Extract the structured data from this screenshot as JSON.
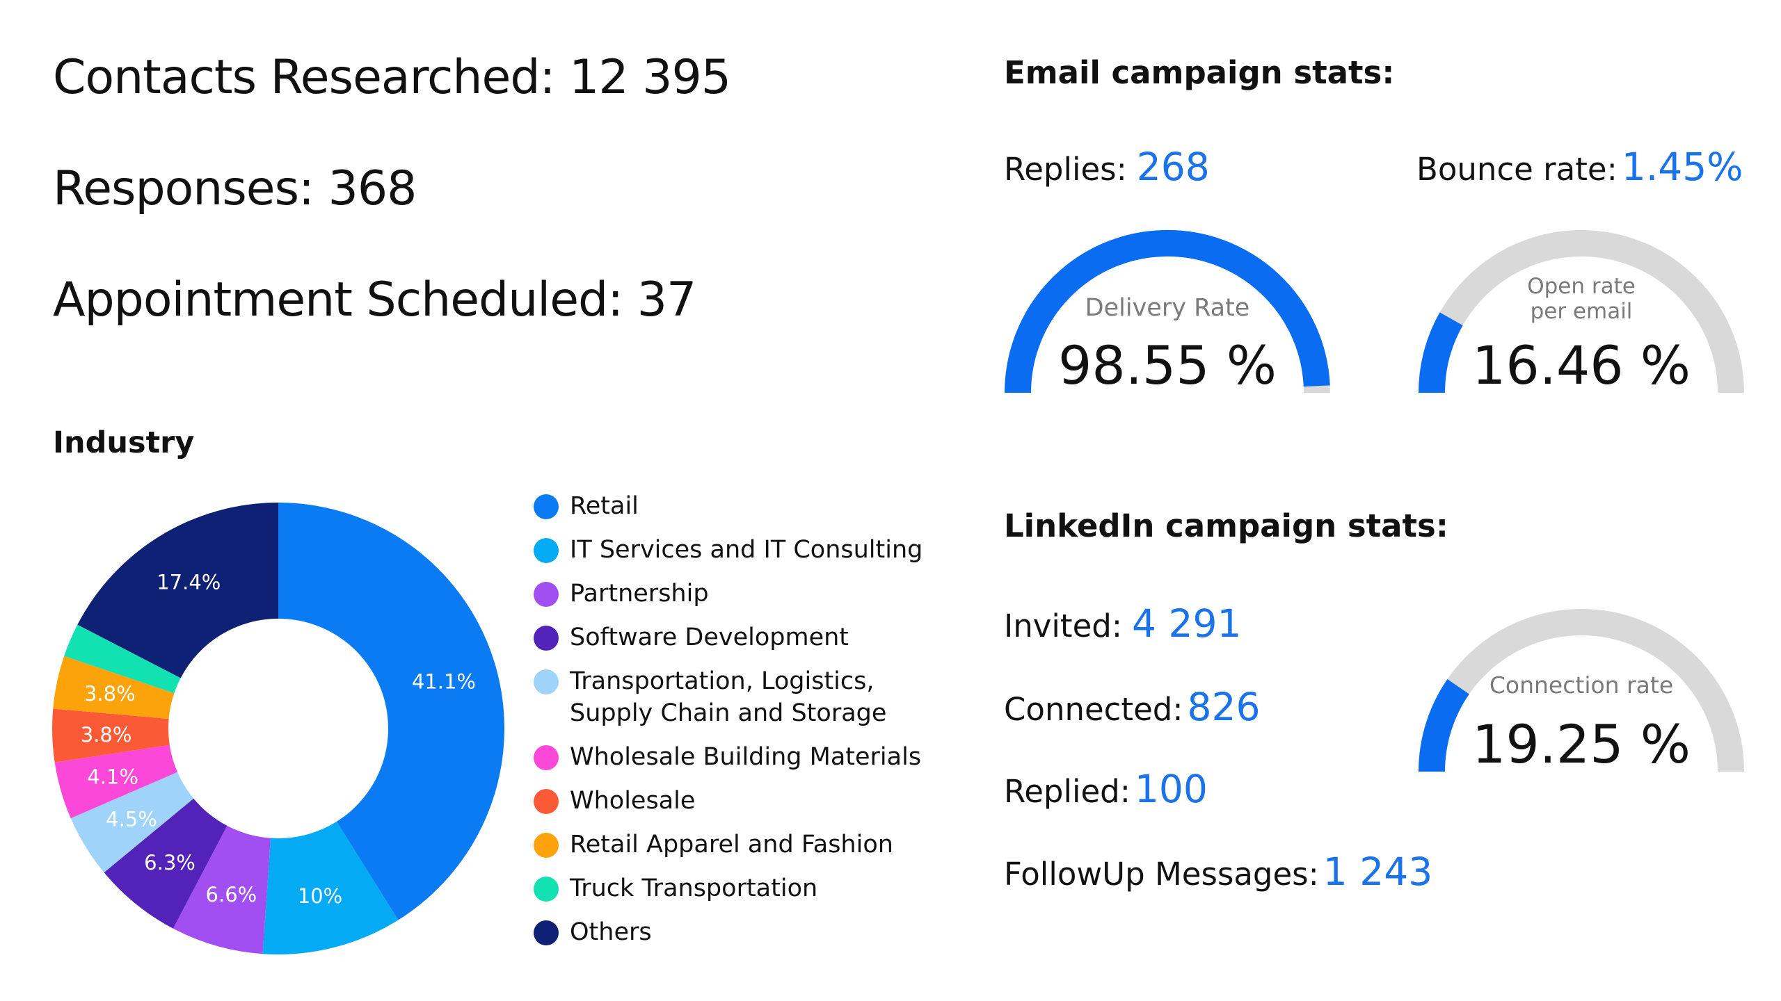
{
  "summary": {
    "contacts_label": "Contacts Researched:",
    "contacts_value": "12 395",
    "responses_label": "Responses:",
    "responses_value": "368",
    "appointments_label": "Appointment Scheduled:",
    "appointments_value": "37"
  },
  "email": {
    "title": "Email campaign stats:",
    "replies_label": "Replies:",
    "replies_value": "268",
    "bounce_label": "Bounce rate:",
    "bounce_value": "1.45%",
    "delivery_gauge": {
      "label": "Delivery Rate",
      "value_text": "98.55 %",
      "percent": 98.55
    },
    "open_gauge": {
      "label_line1": "Open rate",
      "label_line2": "per email",
      "value_text": "16.46 %",
      "percent": 16.46
    }
  },
  "linkedin": {
    "title": "LinkedIn campaign stats:",
    "invited_label": "Invited:",
    "invited_value": "4 291",
    "connected_label": "Connected:",
    "connected_value": "826",
    "replied_label": "Replied:",
    "replied_value": "100",
    "followup_label": "FollowUp Messages:",
    "followup_value": "1 243",
    "connection_gauge": {
      "label": "Connection rate",
      "value_text": "19.25 %",
      "percent": 19.25
    }
  },
  "colors": {
    "accent": "#1a73e8",
    "gauge_blue": "#0a6cf0",
    "gauge_track": "#d9d9d9"
  },
  "chart_data": {
    "type": "pie",
    "title": "Industry",
    "categories": [
      "Retail",
      "IT Services and IT Consulting",
      "Partnership",
      "Software Development",
      "Transportation, Logistics, Supply Chain and Storage",
      "Wholesale Building Materials",
      "Wholesale",
      "Retail Apparel and Fashion",
      "Truck Transportation",
      "Others"
    ],
    "legend_lines": [
      [
        "Retail"
      ],
      [
        "IT Services and IT Consulting"
      ],
      [
        "Partnership"
      ],
      [
        "Software Development"
      ],
      [
        "Transportation, Logistics,",
        "Supply Chain and Storage"
      ],
      [
        "Wholesale Building Materials"
      ],
      [
        "Wholesale"
      ],
      [
        "Retail Apparel and Fashion"
      ],
      [
        "Truck Transportation"
      ],
      [
        "Others"
      ]
    ],
    "values": [
      41.1,
      10,
      6.6,
      6.3,
      4.5,
      4.1,
      3.8,
      3.8,
      2.4,
      17.4
    ],
    "data_labels": [
      "41.1%",
      "10%",
      "6.6%",
      "6.3%",
      "4.5%",
      "4.1%",
      "3.8%",
      "3.8%",
      "",
      "17.4%"
    ],
    "colors": [
      "#0a7bf2",
      "#05aaf5",
      "#a24ff2",
      "#5322b8",
      "#9fd3fa",
      "#fb48d8",
      "#fb5a36",
      "#fca20a",
      "#12e1b2",
      "#0f2174"
    ],
    "legend_position": "right",
    "donut": true
  }
}
